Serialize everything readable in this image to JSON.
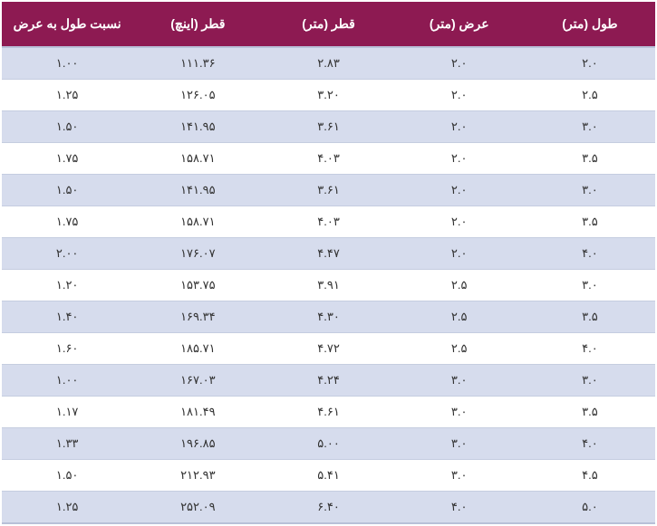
{
  "table": {
    "type": "table",
    "header_bg": "#8d1a52",
    "header_color": "#ffffff",
    "row_odd_bg": "#d6dced",
    "row_even_bg": "#ffffff",
    "text_color": "#333333",
    "border_color": "#c5cde0",
    "columns": [
      "طول (متر)",
      "عرض (متر)",
      "قطر (متر)",
      "قطر (اینچ)",
      "نسبت طول به عرض"
    ],
    "rows": [
      [
        "۲.۰",
        "۲.۰",
        "۲.۸۳",
        "۱۱۱.۳۶",
        "۱.۰۰"
      ],
      [
        "۲.۵",
        "۲.۰",
        "۳.۲۰",
        "۱۲۶.۰۵",
        "۱.۲۵"
      ],
      [
        "۳.۰",
        "۲.۰",
        "۳.۶۱",
        "۱۴۱.۹۵",
        "۱.۵۰"
      ],
      [
        "۳.۵",
        "۲.۰",
        "۴.۰۳",
        "۱۵۸.۷۱",
        "۱.۷۵"
      ],
      [
        "۳.۰",
        "۲.۰",
        "۳.۶۱",
        "۱۴۱.۹۵",
        "۱.۵۰"
      ],
      [
        "۳.۵",
        "۲.۰",
        "۴.۰۳",
        "۱۵۸.۷۱",
        "۱.۷۵"
      ],
      [
        "۴.۰",
        "۲.۰",
        "۴.۴۷",
        "۱۷۶.۰۷",
        "۲.۰۰"
      ],
      [
        "۳.۰",
        "۲.۵",
        "۳.۹۱",
        "۱۵۳.۷۵",
        "۱.۲۰"
      ],
      [
        "۳.۵",
        "۲.۵",
        "۴.۳۰",
        "۱۶۹.۳۴",
        "۱.۴۰"
      ],
      [
        "۴.۰",
        "۲.۵",
        "۴.۷۲",
        "۱۸۵.۷۱",
        "۱.۶۰"
      ],
      [
        "۳.۰",
        "۳.۰",
        "۴.۲۴",
        "۱۶۷.۰۳",
        "۱.۰۰"
      ],
      [
        "۳.۵",
        "۳.۰",
        "۴.۶۱",
        "۱۸۱.۴۹",
        "۱.۱۷"
      ],
      [
        "۴.۰",
        "۳.۰",
        "۵.۰۰",
        "۱۹۶.۸۵",
        "۱.۳۳"
      ],
      [
        "۴.۵",
        "۳.۰",
        "۵.۴۱",
        "۲۱۲.۹۳",
        "۱.۵۰"
      ],
      [
        "۵.۰",
        "۴.۰",
        "۶.۴۰",
        "۲۵۲.۰۹",
        "۱.۲۵"
      ]
    ]
  }
}
